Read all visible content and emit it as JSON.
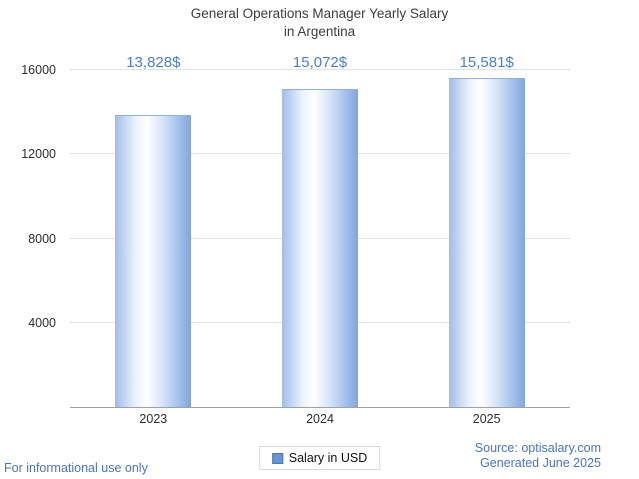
{
  "chart_data": {
    "type": "bar",
    "title": "General Operations Manager Yearly Salary in Argentina",
    "title_lines": [
      "General Operations Manager Yearly Salary",
      "in Argentina"
    ],
    "categories": [
      "2023",
      "2024",
      "2025"
    ],
    "series": [
      {
        "name": "Salary in USD",
        "values": [
          13828,
          15072,
          15581
        ]
      }
    ],
    "value_labels": [
      "13,828$",
      "15,072$",
      "15,581$"
    ],
    "xlabel": "",
    "ylabel": "",
    "ylim": [
      0,
      16000
    ],
    "yticks": [
      4000,
      8000,
      12000,
      16000
    ],
    "grid": true,
    "legend_position": "bottom"
  },
  "footer": {
    "disclaimer": "For informational use only",
    "source": "Source: optisalary.com",
    "generated": "Generated June 2025"
  },
  "colors": {
    "accent_text": "#4a80d1",
    "footer_link": "#4a74c9",
    "bar_edge": "#7ea6e0",
    "bar_center": "#ffffff",
    "legend_swatch": "#6a94d4",
    "grid": "#e2e2e2",
    "title_text": "#3d3d3d"
  }
}
